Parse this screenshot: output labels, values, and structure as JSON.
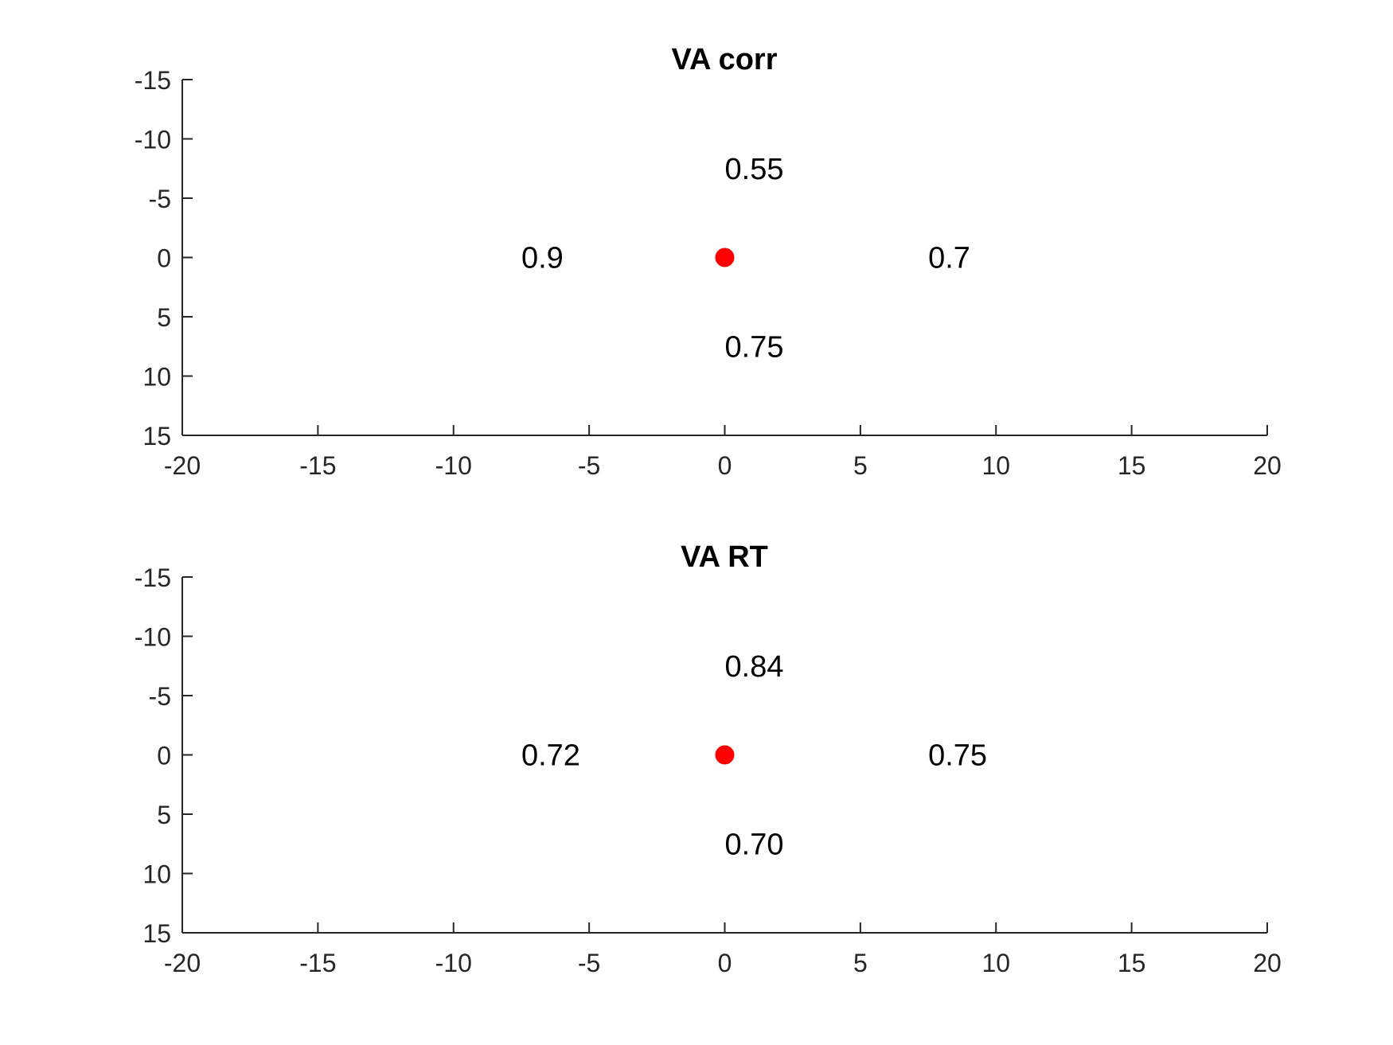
{
  "chart_data": [
    {
      "type": "scatter",
      "title": "VA corr",
      "xlabel": "",
      "ylabel": "",
      "xlim": [
        -20,
        20
      ],
      "ylim": [
        -15,
        15
      ],
      "y_reversed": true,
      "xticks": [
        -20,
        -15,
        -10,
        -5,
        0,
        5,
        10,
        15,
        20
      ],
      "yticks": [
        -15,
        -10,
        -5,
        0,
        5,
        10,
        15
      ],
      "grid": false,
      "points": [
        {
          "x": 0,
          "y": 0,
          "color": "#ff0000"
        }
      ],
      "annotations": [
        {
          "x": 0,
          "y": -7.5,
          "text": "0.55"
        },
        {
          "x": -7.5,
          "y": 0,
          "text": "0.9"
        },
        {
          "x": 7.5,
          "y": 0,
          "text": "0.7"
        },
        {
          "x": 0,
          "y": 7.5,
          "text": "0.75"
        }
      ]
    },
    {
      "type": "scatter",
      "title": "VA RT",
      "xlabel": "",
      "ylabel": "",
      "xlim": [
        -20,
        20
      ],
      "ylim": [
        -15,
        15
      ],
      "y_reversed": true,
      "xticks": [
        -20,
        -15,
        -10,
        -5,
        0,
        5,
        10,
        15,
        20
      ],
      "yticks": [
        -15,
        -10,
        -5,
        0,
        5,
        10,
        15
      ],
      "grid": false,
      "points": [
        {
          "x": 0,
          "y": 0,
          "color": "#ff0000"
        }
      ],
      "annotations": [
        {
          "x": 0,
          "y": -7.5,
          "text": "0.84"
        },
        {
          "x": -7.5,
          "y": 0,
          "text": "0.72"
        },
        {
          "x": 7.5,
          "y": 0,
          "text": "0.75"
        },
        {
          "x": 0,
          "y": 7.5,
          "text": "0.70"
        }
      ]
    }
  ]
}
